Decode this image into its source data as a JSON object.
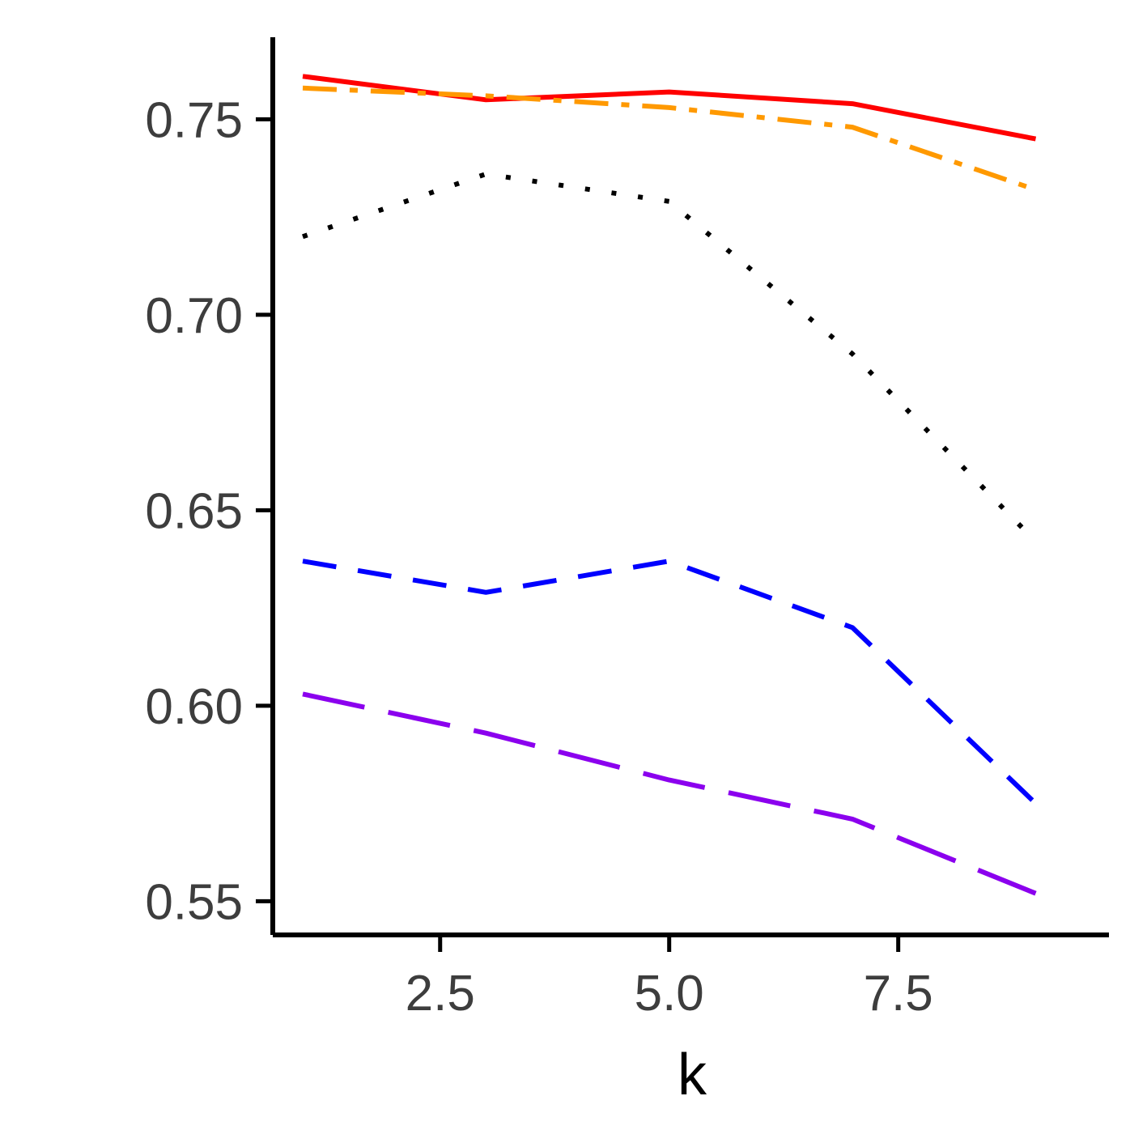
{
  "chart_data": {
    "type": "line",
    "title": "",
    "xlabel": "k",
    "ylabel": "",
    "xlim": [
      0.7,
      9.8
    ],
    "ylim": [
      0.542,
      0.771
    ],
    "x_ticks": [
      {
        "value": 2.5,
        "label": "2.5"
      },
      {
        "value": 5.0,
        "label": "5.0"
      },
      {
        "value": 7.5,
        "label": "7.5"
      }
    ],
    "y_ticks": [
      {
        "value": 0.55,
        "label": "0.55"
      },
      {
        "value": 0.6,
        "label": "0.60"
      },
      {
        "value": 0.65,
        "label": "0.65"
      },
      {
        "value": 0.7,
        "label": "0.70"
      },
      {
        "value": 0.75,
        "label": "0.75"
      }
    ],
    "grid": false,
    "legend": "none",
    "x": [
      1,
      3,
      5,
      7,
      9
    ],
    "series": [
      {
        "values": [
          0.761,
          0.755,
          0.757,
          0.754,
          0.745
        ],
        "color": "#ff0000",
        "dash": "solid"
      },
      {
        "values": [
          0.758,
          0.756,
          0.753,
          0.748,
          0.732
        ],
        "color": "#ff9900",
        "dash": "dashdot"
      },
      {
        "values": [
          0.72,
          0.736,
          0.729,
          0.69,
          0.642
        ],
        "color": "#000000",
        "dash": "dotted"
      },
      {
        "values": [
          0.637,
          0.629,
          0.637,
          0.62,
          0.575
        ],
        "color": "#0000ff",
        "dash": "dashed"
      },
      {
        "values": [
          0.603,
          0.593,
          0.581,
          0.571,
          0.552
        ],
        "color": "#8b00ee",
        "dash": "longdash"
      }
    ]
  }
}
